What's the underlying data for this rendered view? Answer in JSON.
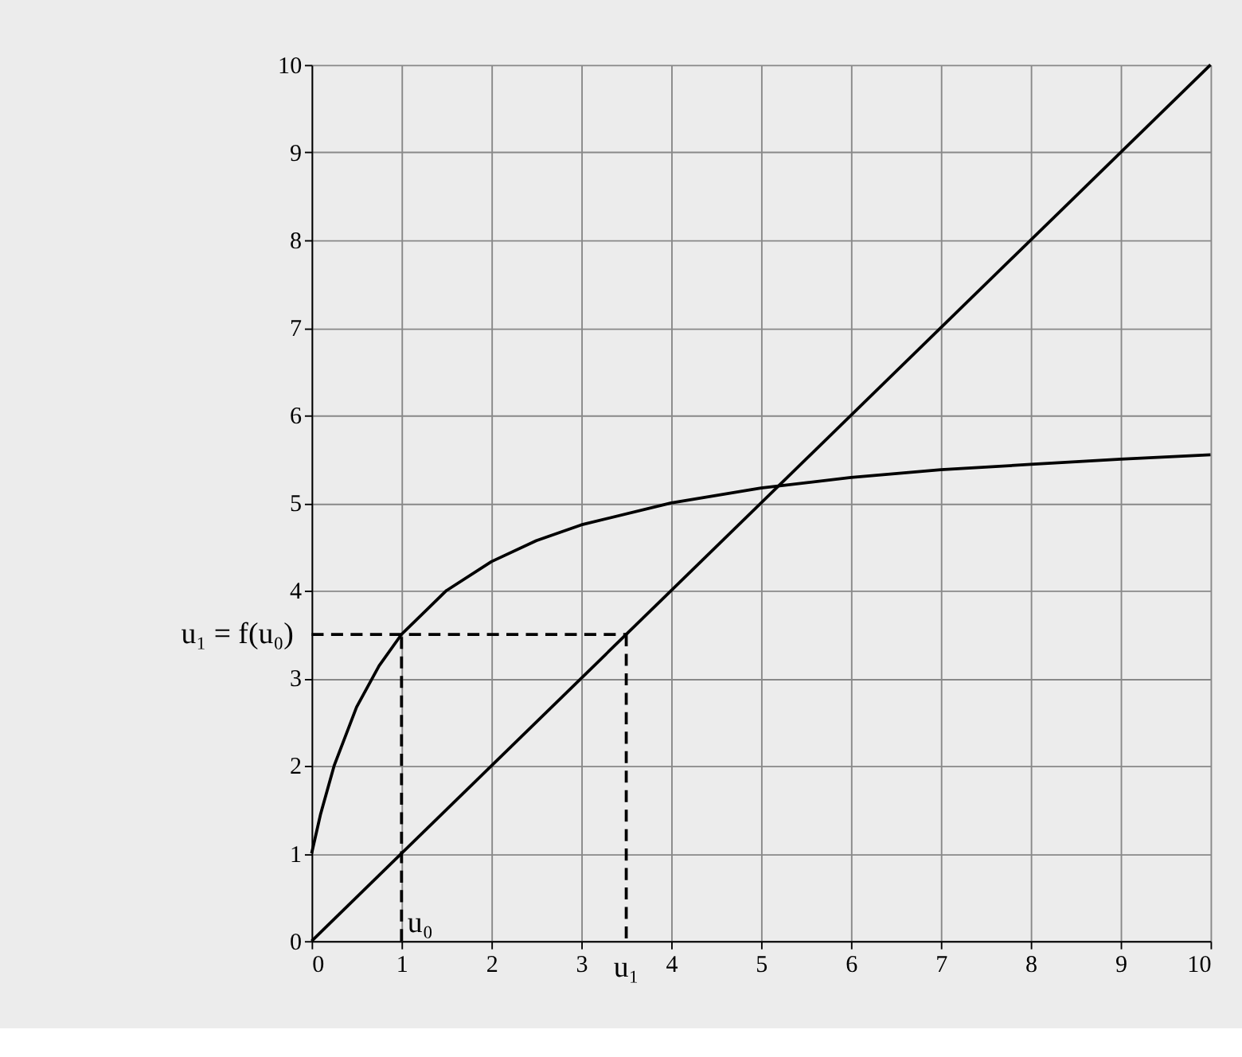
{
  "chart_data": {
    "type": "line",
    "xlim": [
      0,
      10
    ],
    "ylim": [
      0,
      10
    ],
    "xticks": [
      0,
      1,
      2,
      3,
      4,
      5,
      6,
      7,
      8,
      9,
      10
    ],
    "yticks": [
      0,
      1,
      2,
      3,
      4,
      5,
      6,
      7,
      8,
      9,
      10
    ],
    "grid": true,
    "marker": "none",
    "series": [
      {
        "color": "#000000",
        "line_style": "solid",
        "x": [
          0,
          0.1,
          0.25,
          0.5,
          0.75,
          1,
          1.5,
          2,
          2.5,
          3,
          4,
          5,
          6,
          7,
          8,
          9,
          10
        ],
        "values": [
          1,
          1.45,
          2,
          2.67,
          3.14,
          3.5,
          4,
          4.33,
          4.57,
          4.75,
          5,
          5.17,
          5.29,
          5.38,
          5.44,
          5.5,
          5.55
        ]
      },
      {
        "color": "#000000",
        "line_style": "solid",
        "x": [
          0,
          10
        ],
        "values": [
          0,
          10
        ]
      },
      {
        "color": "#000000",
        "line_style": "dashed",
        "x": [
          1,
          1
        ],
        "values": [
          0,
          3.5
        ]
      },
      {
        "color": "#000000",
        "line_style": "dashed",
        "x": [
          0,
          3.5
        ],
        "values": [
          3.5,
          3.5
        ]
      },
      {
        "color": "#000000",
        "line_style": "dashed",
        "x": [
          3.5,
          3.5
        ],
        "values": [
          3.5,
          0
        ]
      }
    ],
    "annotations": [
      {
        "text": "u₁ = f(u₀)",
        "x": 0,
        "y": 3.5
      },
      {
        "text": "u₁",
        "x": 3.5,
        "y": 0
      },
      {
        "text": "u₀",
        "x": 1,
        "y": 0
      }
    ]
  }
}
